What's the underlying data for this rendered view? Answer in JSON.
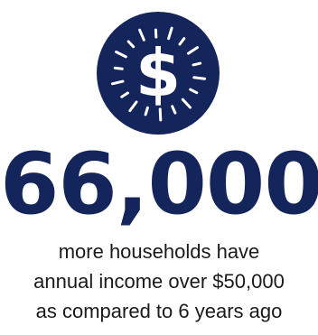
{
  "icon": {
    "name": "dollar-burst-icon",
    "glyph": "$",
    "circle_color": "#14255c",
    "glyph_color": "#ffffff"
  },
  "headline": {
    "value": "66,000",
    "color": "#14255c"
  },
  "caption": {
    "line1": "more households have",
    "line2": "annual income over $50,000",
    "line3": "as compared to 6 years ago",
    "color": "#1a1a1a"
  }
}
